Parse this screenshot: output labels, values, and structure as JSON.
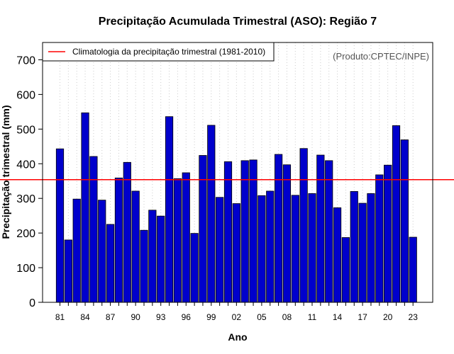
{
  "colors": {
    "bar_fill": "#0000cc",
    "bar_stroke": "#000000",
    "climatology_line": "#ff0000",
    "grid": "#cccccc",
    "credit_text": "#555555"
  },
  "credit": "(Produto:CPTEC/INPE)",
  "chart_data": {
    "type": "bar",
    "title": "Precipitação Acumulada Trimestral (ASO): Região 7",
    "xlabel": "Ano",
    "ylabel": "Precipitação trimestral (mm)",
    "ylim": [
      0,
      750
    ],
    "yticks": [
      0,
      100,
      200,
      300,
      400,
      500,
      600,
      700
    ],
    "grid": "vertical dotted lines",
    "legend_position": "top-left",
    "categories": [
      "1981",
      "1982",
      "1983",
      "1984",
      "1985",
      "1986",
      "1987",
      "1988",
      "1989",
      "1990",
      "1991",
      "1992",
      "1993",
      "1994",
      "1995",
      "1996",
      "1997",
      "1998",
      "1999",
      "2000",
      "2001",
      "2002",
      "2003",
      "2004",
      "2005",
      "2006",
      "2007",
      "2008",
      "2009",
      "2010",
      "2011",
      "2012",
      "2013",
      "2014",
      "2015",
      "2016",
      "2017",
      "2018",
      "2019",
      "2020",
      "2021",
      "2022",
      "2023"
    ],
    "tick_labels": [
      "81",
      "84",
      "87",
      "90",
      "93",
      "96",
      "99",
      "02",
      "05",
      "08",
      "11",
      "14",
      "17",
      "20",
      "23"
    ],
    "values": [
      443,
      180,
      298,
      547,
      421,
      295,
      225,
      359,
      404,
      321,
      208,
      266,
      249,
      536,
      357,
      374,
      199,
      424,
      511,
      303,
      406,
      285,
      409,
      411,
      308,
      321,
      427,
      397,
      309,
      444,
      314,
      425,
      409,
      273,
      187,
      320,
      286,
      314,
      368,
      396,
      510,
      469,
      188
    ],
    "series": [
      {
        "name": "Precipitação trimestral",
        "values": [
          443,
          180,
          298,
          547,
          421,
          295,
          225,
          359,
          404,
          321,
          208,
          266,
          249,
          536,
          357,
          374,
          199,
          424,
          511,
          303,
          406,
          285,
          409,
          411,
          308,
          321,
          427,
          397,
          309,
          444,
          314,
          425,
          409,
          273,
          187,
          320,
          286,
          314,
          368,
          396,
          510,
          469,
          188
        ]
      }
    ],
    "reference_lines": [
      {
        "name": "Climatologia da precipitação trimestral (1981-2010)",
        "value": 354
      }
    ]
  }
}
